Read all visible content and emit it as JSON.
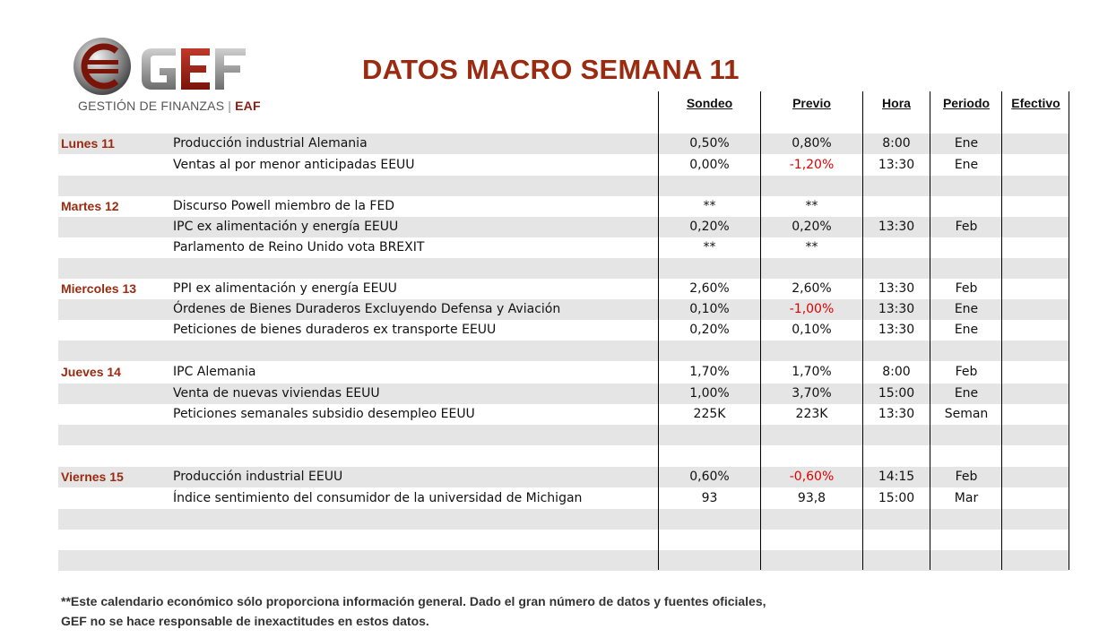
{
  "logo": {
    "brand": "GEF",
    "subtitle": "GESTIÓN DE FINANZAS",
    "separator": "|",
    "tag": "EAF"
  },
  "title": "DATOS MACRO SEMANA 11",
  "columns": {
    "sondeo": "Sondeo",
    "previo": "Previo",
    "hora": "Hora",
    "periodo": "Periodo",
    "efectivo": "Efectivo"
  },
  "rows": [
    {
      "day": "Lunes 11",
      "event": "Producción industrial Alemania",
      "sondeo": "0,50%",
      "previo": "0,80%",
      "hora": "8:00",
      "periodo": "Ene"
    },
    {
      "day": "",
      "event": "Ventas al por menor anticipadas EEUU",
      "sondeo": "0,00%",
      "previo": "-1,20%",
      "hora": "13:30",
      "periodo": "Ene"
    },
    {
      "day": "",
      "event": "",
      "sondeo": "",
      "previo": "",
      "hora": "",
      "periodo": ""
    },
    {
      "day": "Martes 12",
      "event": "Discurso Powell miembro de la FED",
      "sondeo": "**",
      "previo": "**",
      "hora": "",
      "periodo": ""
    },
    {
      "day": "",
      "event": "IPC ex alimentación y energía EEUU",
      "sondeo": "0,20%",
      "previo": "0,20%",
      "hora": "13:30",
      "periodo": "Feb"
    },
    {
      "day": "",
      "event": "Parlamento de Reino Unido vota BREXIT",
      "sondeo": "**",
      "previo": "**",
      "hora": "",
      "periodo": ""
    },
    {
      "day": "",
      "event": "",
      "sondeo": "",
      "previo": "",
      "hora": "",
      "periodo": ""
    },
    {
      "day": "Miercoles 13",
      "event": "PPI ex alimentación y energía EEUU",
      "sondeo": "2,60%",
      "previo": "2,60%",
      "hora": "13:30",
      "periodo": "Feb"
    },
    {
      "day": "",
      "event": "Órdenes de Bienes Duraderos Excluyendo Defensa y Aviación",
      "sondeo": "0,10%",
      "previo": "-1,00%",
      "hora": "13:30",
      "periodo": "Ene"
    },
    {
      "day": "",
      "event": "Peticiones de bienes duraderos ex transporte EEUU",
      "sondeo": "0,20%",
      "previo": "0,10%",
      "hora": "13:30",
      "periodo": "Ene"
    },
    {
      "day": "",
      "event": "",
      "sondeo": "",
      "previo": "",
      "hora": "",
      "periodo": ""
    },
    {
      "day": "Jueves 14",
      "event": "IPC Alemania",
      "sondeo": "1,70%",
      "previo": "1,70%",
      "hora": "8:00",
      "periodo": "Feb"
    },
    {
      "day": "",
      "event": "Venta de nuevas viviendas EEUU",
      "sondeo": "1,00%",
      "previo": "3,70%",
      "hora": "15:00",
      "periodo": "Ene"
    },
    {
      "day": "",
      "event": "Peticiones semanales subsidio desempleo EEUU",
      "sondeo": "225K",
      "previo": "223K",
      "hora": "13:30",
      "periodo": "Seman"
    },
    {
      "day": "",
      "event": "",
      "sondeo": "",
      "previo": "",
      "hora": "",
      "periodo": ""
    },
    {
      "day": "",
      "event": "",
      "sondeo": "",
      "previo": "",
      "hora": "",
      "periodo": ""
    },
    {
      "day": "Viernes 15",
      "event": "Producción industrial EEUU",
      "sondeo": "0,60%",
      "previo": "-0,60%",
      "hora": "14:15",
      "periodo": "Feb"
    },
    {
      "day": "",
      "event": "Índice sentimiento del consumidor de la universidad de Michigan",
      "sondeo": "93",
      "previo": "93,8",
      "hora": "15:00",
      "periodo": "Mar"
    },
    {
      "day": "",
      "event": "",
      "sondeo": "",
      "previo": "",
      "hora": "",
      "periodo": ""
    },
    {
      "day": "",
      "event": "",
      "sondeo": "",
      "previo": "",
      "hora": "",
      "periodo": ""
    },
    {
      "day": "",
      "event": "",
      "sondeo": "",
      "previo": "",
      "hora": "",
      "periodo": ""
    }
  ],
  "footnote": {
    "line1": "**Este calendario económico sólo proporciona información general. Dado el gran número de datos y fuentes oficiales,",
    "line2": "GEF no se hace responsable de inexactitudes en estos datos."
  },
  "colors": {
    "brand_red": "#9a2a10",
    "negative": "#e00000",
    "shade": "#e5e5e5"
  }
}
